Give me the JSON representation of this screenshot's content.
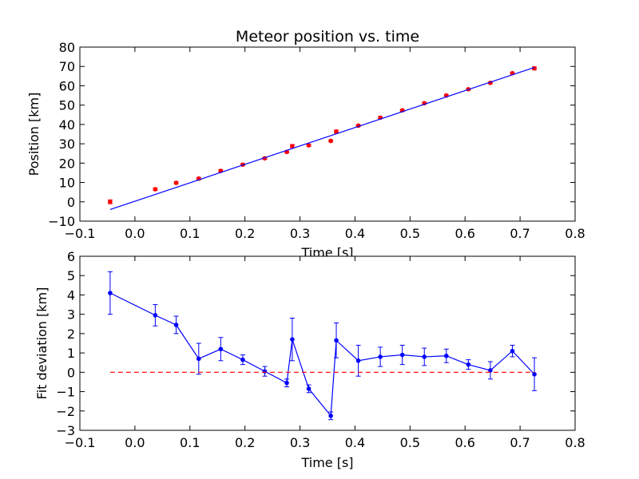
{
  "chart_data": [
    {
      "type": "scatter",
      "title": "Meteor position vs. time",
      "xlabel": "Time [s]",
      "ylabel": "Position [km]",
      "xlim": [
        -0.1,
        0.8
      ],
      "ylim": [
        -10,
        80
      ],
      "xticks": [
        "−0.1",
        "0.0",
        "0.1",
        "0.2",
        "0.3",
        "0.4",
        "0.5",
        "0.6",
        "0.7",
        "0.8"
      ],
      "yticks": [
        "−10",
        "0",
        "10",
        "20",
        "30",
        "40",
        "50",
        "60",
        "70",
        "80"
      ],
      "grid": false,
      "series": [
        {
          "kind": "errorbar-points",
          "color": "#ff0000",
          "points": [
            {
              "x": -0.045,
              "y": 0.0,
              "err": 1.0
            },
            {
              "x": 0.037,
              "y": 6.5,
              "err": 0.6
            },
            {
              "x": 0.075,
              "y": 9.8,
              "err": 0.6
            },
            {
              "x": 0.116,
              "y": 12.0,
              "err": 0.6
            },
            {
              "x": 0.156,
              "y": 16.0,
              "err": 0.6
            },
            {
              "x": 0.196,
              "y": 19.2,
              "err": 0.5
            },
            {
              "x": 0.236,
              "y": 22.5,
              "err": 0.5
            },
            {
              "x": 0.276,
              "y": 25.8,
              "err": 0.5
            },
            {
              "x": 0.286,
              "y": 28.8,
              "err": 0.8
            },
            {
              "x": 0.316,
              "y": 29.2,
              "err": 0.5
            },
            {
              "x": 0.356,
              "y": 31.5,
              "err": 0.5
            },
            {
              "x": 0.366,
              "y": 36.3,
              "err": 0.8
            },
            {
              "x": 0.406,
              "y": 39.4,
              "err": 0.5
            },
            {
              "x": 0.446,
              "y": 43.5,
              "err": 0.5
            },
            {
              "x": 0.486,
              "y": 47.3,
              "err": 0.5
            },
            {
              "x": 0.526,
              "y": 51.0,
              "err": 0.5
            },
            {
              "x": 0.566,
              "y": 55.0,
              "err": 0.4
            },
            {
              "x": 0.606,
              "y": 58.2,
              "err": 0.4
            },
            {
              "x": 0.646,
              "y": 61.5,
              "err": 0.4
            },
            {
              "x": 0.686,
              "y": 66.5,
              "err": 0.4
            },
            {
              "x": 0.726,
              "y": 69.0,
              "err": 0.8
            }
          ]
        },
        {
          "kind": "fit-line",
          "color": "#0000ff",
          "x": [
            -0.045,
            0.726
          ],
          "y": [
            -4.0,
            69.5
          ]
        }
      ]
    },
    {
      "type": "line",
      "title": "",
      "xlabel": "Time [s]",
      "ylabel": "Fit deviation [km]",
      "xlim": [
        -0.1,
        0.8
      ],
      "ylim": [
        -3,
        6
      ],
      "xticks": [
        "−0.1",
        "0.0",
        "0.1",
        "0.2",
        "0.3",
        "0.4",
        "0.5",
        "0.6",
        "0.7",
        "0.8"
      ],
      "yticks": [
        "−3",
        "−2",
        "−1",
        "0",
        "1",
        "2",
        "3",
        "4",
        "5",
        "6"
      ],
      "grid": false,
      "series": [
        {
          "kind": "errorbar-line",
          "color": "#0000ff",
          "points": [
            {
              "x": -0.045,
              "y": 4.1,
              "err": 1.1
            },
            {
              "x": 0.037,
              "y": 2.95,
              "err": 0.55
            },
            {
              "x": 0.075,
              "y": 2.45,
              "err": 0.45
            },
            {
              "x": 0.116,
              "y": 0.7,
              "err": 0.8
            },
            {
              "x": 0.156,
              "y": 1.2,
              "err": 0.6
            },
            {
              "x": 0.196,
              "y": 0.65,
              "err": 0.25
            },
            {
              "x": 0.236,
              "y": 0.05,
              "err": 0.25
            },
            {
              "x": 0.276,
              "y": -0.55,
              "err": 0.2
            },
            {
              "x": 0.286,
              "y": 1.7,
              "err": 1.1
            },
            {
              "x": 0.316,
              "y": -0.85,
              "err": 0.2
            },
            {
              "x": 0.356,
              "y": -2.25,
              "err": 0.2
            },
            {
              "x": 0.366,
              "y": 1.65,
              "err": 0.9
            },
            {
              "x": 0.406,
              "y": 0.6,
              "err": 0.8
            },
            {
              "x": 0.446,
              "y": 0.8,
              "err": 0.5
            },
            {
              "x": 0.486,
              "y": 0.9,
              "err": 0.5
            },
            {
              "x": 0.526,
              "y": 0.8,
              "err": 0.45
            },
            {
              "x": 0.566,
              "y": 0.85,
              "err": 0.35
            },
            {
              "x": 0.606,
              "y": 0.4,
              "err": 0.25
            },
            {
              "x": 0.646,
              "y": 0.1,
              "err": 0.45
            },
            {
              "x": 0.686,
              "y": 1.1,
              "err": 0.3
            },
            {
              "x": 0.726,
              "y": -0.1,
              "err": 0.85
            }
          ]
        },
        {
          "kind": "zero-line",
          "color": "#ff0000",
          "dashed": true,
          "x": [
            -0.045,
            0.726
          ],
          "y": [
            0,
            0
          ]
        }
      ]
    }
  ]
}
